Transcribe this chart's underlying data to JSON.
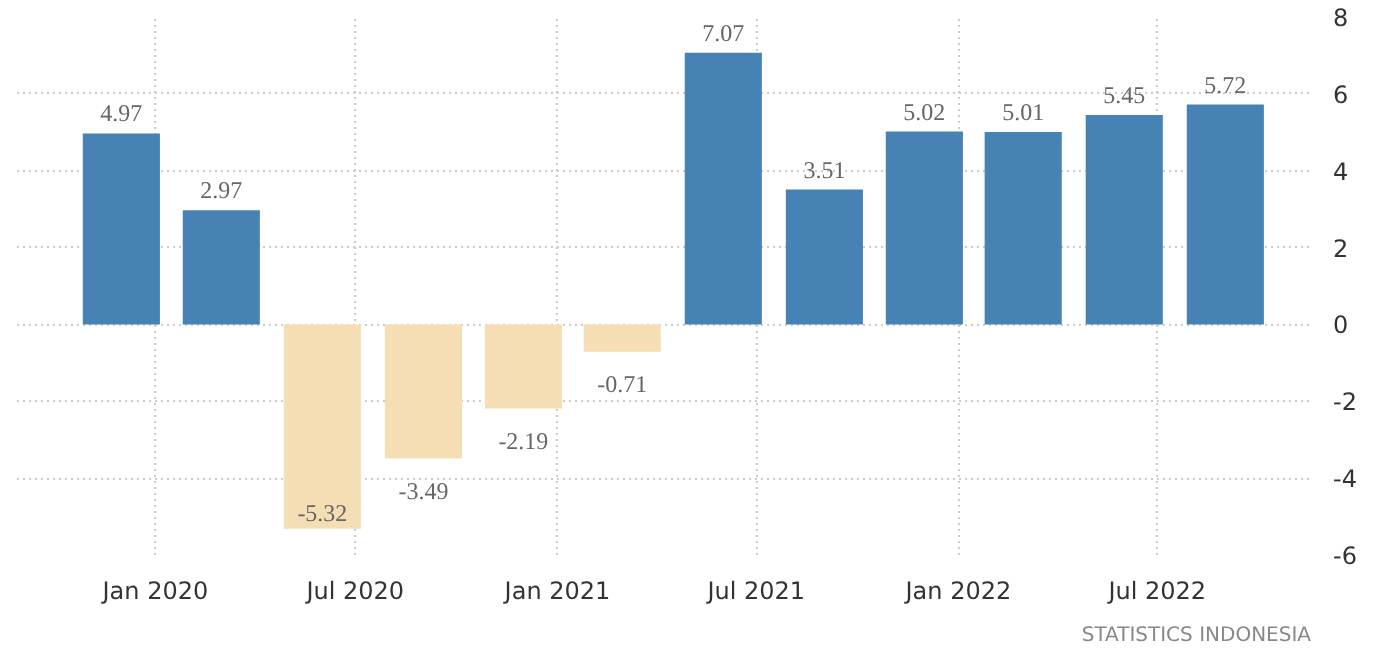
{
  "chart_data": {
    "type": "bar",
    "x": [
      "2019-12",
      "2020-03",
      "2020-06",
      "2020-09",
      "2020-12",
      "2021-03",
      "2021-06",
      "2021-09",
      "2021-12",
      "2022-03",
      "2022-06",
      "2022-09"
    ],
    "values": [
      4.97,
      2.97,
      -5.32,
      -3.49,
      -2.19,
      -0.71,
      7.07,
      3.51,
      5.02,
      5.01,
      5.45,
      5.72
    ],
    "colors": [
      "#4682b4",
      "#4682b4",
      "#f5deb3",
      "#f5deb3",
      "#f5deb3",
      "#f5deb3",
      "#4682b4",
      "#4682b4",
      "#4682b4",
      "#4682b4",
      "#4682b4",
      "#4682b4"
    ],
    "data_labels": true,
    "xlim": [
      "2019-08-28",
      "2022-11-18"
    ],
    "xticks": [
      {
        "value": "2020-01",
        "label": "Jan 2020"
      },
      {
        "value": "2020-07",
        "label": "Jul 2020"
      },
      {
        "value": "2021-01",
        "label": "Jan 2021"
      },
      {
        "value": "2021-07",
        "label": "Jul 2021"
      },
      {
        "value": "2022-01",
        "label": "Jan 2022"
      },
      {
        "value": "2022-07",
        "label": "Jul 2022"
      }
    ],
    "ylim": [
      -6,
      8
    ],
    "yticks": [
      -6,
      -4,
      -2,
      0,
      2,
      4,
      6,
      8
    ],
    "grid": true,
    "annotations": [
      "STATISTICS INDONESIA"
    ]
  }
}
